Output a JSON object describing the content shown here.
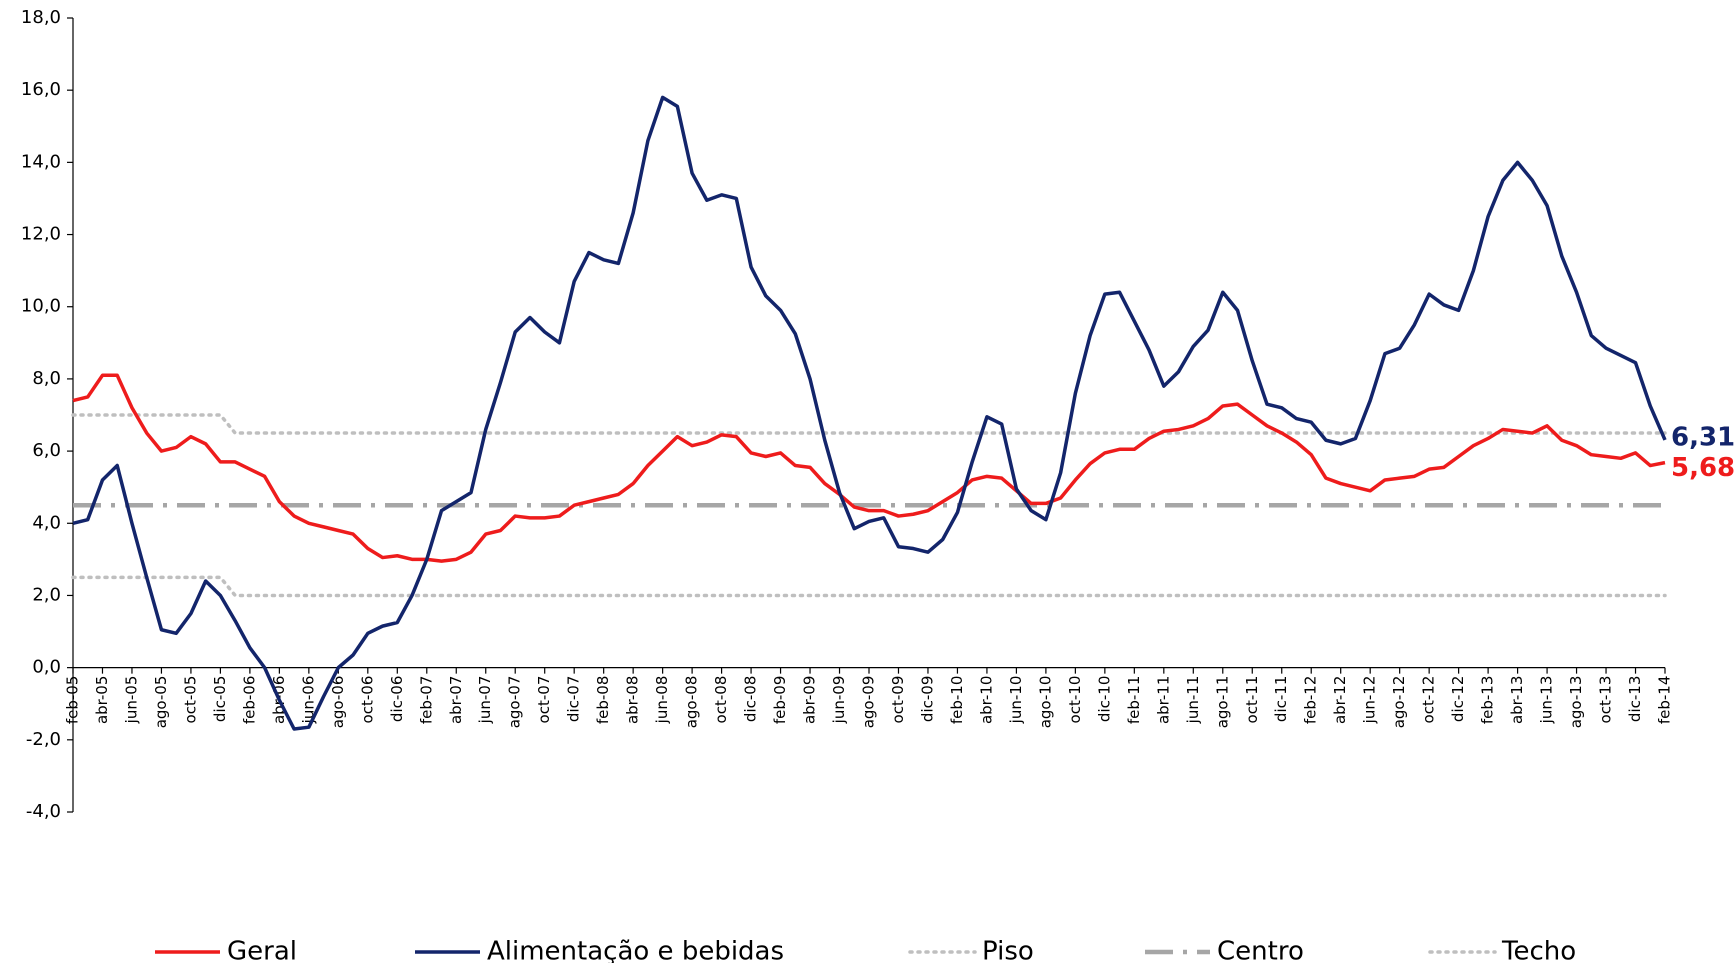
{
  "chart_data": {
    "type": "line",
    "categories": [
      "feb-05",
      null,
      "abr-05",
      null,
      "jun-05",
      null,
      "ago-05",
      null,
      "oct-05",
      null,
      "dic-05",
      null,
      "feb-06",
      null,
      "abr-06",
      null,
      "jun-06",
      null,
      "ago-06",
      null,
      "oct-06",
      null,
      "dic-06",
      null,
      "feb-07",
      null,
      "abr-07",
      null,
      "jun-07",
      null,
      "ago-07",
      null,
      "oct-07",
      null,
      "dic-07",
      null,
      "feb-08",
      null,
      "abr-08",
      null,
      "jun-08",
      null,
      "ago-08",
      null,
      "oct-08",
      null,
      "dic-08",
      null,
      "feb-09",
      null,
      "abr-09",
      null,
      "jun-09",
      null,
      "ago-09",
      null,
      "oct-09",
      null,
      "dic-09",
      null,
      "feb-10",
      null,
      "abr-10",
      null,
      "jun-10",
      null,
      "ago-10",
      null,
      "oct-10",
      null,
      "dic-10",
      null,
      "feb-11",
      null,
      "abr-11",
      null,
      "jun-11",
      null,
      "ago-11",
      null,
      "oct-11",
      null,
      "dic-11",
      null,
      "feb-12",
      null,
      "abr-12",
      null,
      "jun-12",
      null,
      "ago-12",
      null,
      "oct-12",
      null,
      "dic-12",
      null,
      "feb-13",
      null,
      "abr-13",
      null,
      "jun-13",
      null,
      "ago-13",
      null,
      "oct-13",
      null,
      "dic-13",
      null,
      "feb-14"
    ],
    "series": [
      {
        "name": "Geral",
        "color": "#ee1c1c",
        "style": "solid",
        "values": [
          7.4,
          7.5,
          8.1,
          8.1,
          7.2,
          6.5,
          6.0,
          6.1,
          6.4,
          6.2,
          5.7,
          5.7,
          5.5,
          5.3,
          4.6,
          4.2,
          4.0,
          3.9,
          3.8,
          3.7,
          3.3,
          3.05,
          3.1,
          3.0,
          3.0,
          2.95,
          3.0,
          3.2,
          3.7,
          3.8,
          4.2,
          4.15,
          4.15,
          4.2,
          4.5,
          4.6,
          4.7,
          4.8,
          5.1,
          5.6,
          6.0,
          6.4,
          6.15,
          6.25,
          6.45,
          6.4,
          5.95,
          5.85,
          5.95,
          5.6,
          5.55,
          5.1,
          4.8,
          4.45,
          4.35,
          4.35,
          4.2,
          4.25,
          4.35,
          4.6,
          4.85,
          5.2,
          5.3,
          5.25,
          4.9,
          4.55,
          4.55,
          4.7,
          5.2,
          5.65,
          5.95,
          6.05,
          6.05,
          6.35,
          6.55,
          6.6,
          6.7,
          6.9,
          7.25,
          7.3,
          7.0,
          6.7,
          6.5,
          6.25,
          5.9,
          5.25,
          5.1,
          5.0,
          4.9,
          5.2,
          5.25,
          5.3,
          5.5,
          5.55,
          5.85,
          6.15,
          6.35,
          6.6,
          6.55,
          6.5,
          6.7,
          6.3,
          6.15,
          5.9,
          5.85,
          5.8,
          5.95,
          5.6,
          5.68
        ],
        "value_labels": [
          null,
          null,
          null,
          null,
          null,
          null,
          null,
          null,
          null,
          null,
          null,
          null,
          null,
          null,
          null,
          null,
          null,
          null,
          null,
          null,
          null,
          null,
          null,
          null,
          null,
          null,
          null,
          null,
          null,
          null,
          null,
          null,
          null,
          null,
          null,
          null,
          null,
          null,
          null,
          null,
          null,
          null,
          null,
          null,
          null,
          null,
          null,
          null,
          null,
          null,
          null,
          null,
          null,
          null,
          null,
          null,
          null,
          null,
          null,
          null,
          null,
          null,
          null,
          null,
          null,
          null,
          null,
          null,
          null,
          null,
          null,
          null,
          null,
          null,
          null,
          null,
          null,
          null,
          null,
          null,
          null,
          null,
          null,
          null,
          null,
          null,
          null,
          null,
          null,
          null,
          null,
          null,
          null,
          null,
          null,
          null,
          null,
          null,
          null,
          null,
          null,
          null,
          null,
          null,
          null,
          null,
          null,
          null,
          "5,68"
        ]
      },
      {
        "name": "Alimentação e bebidas",
        "color": "#13256b",
        "style": "solid",
        "values": [
          4.0,
          4.1,
          5.2,
          5.6,
          4.0,
          2.5,
          1.05,
          0.95,
          1.5,
          2.4,
          2.0,
          1.3,
          0.55,
          0.0,
          -0.9,
          -1.7,
          -1.65,
          -0.8,
          0.0,
          0.35,
          0.95,
          1.15,
          1.25,
          2.0,
          3.0,
          4.35,
          4.6,
          4.85,
          6.6,
          7.9,
          9.3,
          9.7,
          9.3,
          9.0,
          10.7,
          11.5,
          11.3,
          11.2,
          12.6,
          14.6,
          15.8,
          15.55,
          13.7,
          12.95,
          13.1,
          13.0,
          11.1,
          10.3,
          9.9,
          9.25,
          8.0,
          6.3,
          4.85,
          3.85,
          4.05,
          4.15,
          3.35,
          3.3,
          3.2,
          3.55,
          4.3,
          5.7,
          6.95,
          6.75,
          4.95,
          4.35,
          4.1,
          5.4,
          7.6,
          9.2,
          10.35,
          10.4,
          9.6,
          8.8,
          7.8,
          8.2,
          8.9,
          9.35,
          10.4,
          9.9,
          8.5,
          7.3,
          7.2,
          6.9,
          6.8,
          6.3,
          6.2,
          6.35,
          7.4,
          8.7,
          8.85,
          9.5,
          10.35,
          10.05,
          9.9,
          11.0,
          12.5,
          13.5,
          14.0,
          13.5,
          12.8,
          11.4,
          10.4,
          9.2,
          8.85,
          8.65,
          8.45,
          7.25,
          6.31
        ],
        "value_labels": [
          null,
          null,
          null,
          null,
          null,
          null,
          null,
          null,
          null,
          null,
          null,
          null,
          null,
          null,
          null,
          null,
          null,
          null,
          null,
          null,
          null,
          null,
          null,
          null,
          null,
          null,
          null,
          null,
          null,
          null,
          null,
          null,
          null,
          null,
          null,
          null,
          null,
          null,
          null,
          null,
          null,
          null,
          null,
          null,
          null,
          null,
          null,
          null,
          null,
          null,
          null,
          null,
          null,
          null,
          null,
          null,
          null,
          null,
          null,
          null,
          null,
          null,
          null,
          null,
          null,
          null,
          null,
          null,
          null,
          null,
          null,
          null,
          null,
          null,
          null,
          null,
          null,
          null,
          null,
          null,
          null,
          null,
          null,
          null,
          null,
          null,
          null,
          null,
          null,
          null,
          null,
          null,
          null,
          null,
          null,
          null,
          null,
          null,
          null,
          null,
          null,
          null,
          null,
          null,
          null,
          null,
          null,
          null,
          "6,31"
        ]
      },
      {
        "name": "Piso",
        "color": "#bfbfbf",
        "style": "dotted",
        "values": [
          2.5,
          2.5,
          2.5,
          2.5,
          2.5,
          2.5,
          2.5,
          2.5,
          2.5,
          2.5,
          2.5,
          2.0,
          2.0,
          2.0,
          2.0,
          2.0,
          2.0,
          2.0,
          2.0,
          2.0,
          2.0,
          2.0,
          2.0,
          2.0,
          2.0,
          2.0,
          2.0,
          2.0,
          2.0,
          2.0,
          2.0,
          2.0,
          2.0,
          2.0,
          2.0,
          2.0,
          2.0,
          2.0,
          2.0,
          2.0,
          2.0,
          2.0,
          2.0,
          2.0,
          2.0,
          2.0,
          2.0,
          2.0,
          2.0,
          2.0,
          2.0,
          2.0,
          2.0,
          2.0,
          2.0,
          2.0,
          2.0,
          2.0,
          2.0,
          2.0,
          2.0,
          2.0,
          2.0,
          2.0,
          2.0,
          2.0,
          2.0,
          2.0,
          2.0,
          2.0,
          2.0,
          2.0,
          2.0,
          2.0,
          2.0,
          2.0,
          2.0,
          2.0,
          2.0,
          2.0,
          2.0,
          2.0,
          2.0,
          2.0,
          2.0,
          2.0,
          2.0,
          2.0,
          2.0,
          2.0,
          2.0,
          2.0,
          2.0,
          2.0,
          2.0,
          2.0,
          2.0,
          2.0,
          2.0,
          2.0,
          2.0,
          2.0,
          2.0,
          2.0,
          2.0,
          2.0,
          2.0,
          2.0,
          2.0
        ]
      },
      {
        "name": "Centro",
        "color": "#a6a6a6",
        "style": "dashdot",
        "values": [
          4.5,
          4.5,
          4.5,
          4.5,
          4.5,
          4.5,
          4.5,
          4.5,
          4.5,
          4.5,
          4.5,
          4.5,
          4.5,
          4.5,
          4.5,
          4.5,
          4.5,
          4.5,
          4.5,
          4.5,
          4.5,
          4.5,
          4.5,
          4.5,
          4.5,
          4.5,
          4.5,
          4.5,
          4.5,
          4.5,
          4.5,
          4.5,
          4.5,
          4.5,
          4.5,
          4.5,
          4.5,
          4.5,
          4.5,
          4.5,
          4.5,
          4.5,
          4.5,
          4.5,
          4.5,
          4.5,
          4.5,
          4.5,
          4.5,
          4.5,
          4.5,
          4.5,
          4.5,
          4.5,
          4.5,
          4.5,
          4.5,
          4.5,
          4.5,
          4.5,
          4.5,
          4.5,
          4.5,
          4.5,
          4.5,
          4.5,
          4.5,
          4.5,
          4.5,
          4.5,
          4.5,
          4.5,
          4.5,
          4.5,
          4.5,
          4.5,
          4.5,
          4.5,
          4.5,
          4.5,
          4.5,
          4.5,
          4.5,
          4.5,
          4.5,
          4.5,
          4.5,
          4.5,
          4.5,
          4.5,
          4.5,
          4.5,
          4.5,
          4.5,
          4.5,
          4.5,
          4.5,
          4.5,
          4.5,
          4.5,
          4.5,
          4.5,
          4.5,
          4.5,
          4.5,
          4.5,
          4.5,
          4.5,
          4.5
        ]
      },
      {
        "name": "Techo",
        "color": "#bfbfbf",
        "style": "dotted",
        "values": [
          7.0,
          7.0,
          7.0,
          7.0,
          7.0,
          7.0,
          7.0,
          7.0,
          7.0,
          7.0,
          7.0,
          6.5,
          6.5,
          6.5,
          6.5,
          6.5,
          6.5,
          6.5,
          6.5,
          6.5,
          6.5,
          6.5,
          6.5,
          6.5,
          6.5,
          6.5,
          6.5,
          6.5,
          6.5,
          6.5,
          6.5,
          6.5,
          6.5,
          6.5,
          6.5,
          6.5,
          6.5,
          6.5,
          6.5,
          6.5,
          6.5,
          6.5,
          6.5,
          6.5,
          6.5,
          6.5,
          6.5,
          6.5,
          6.5,
          6.5,
          6.5,
          6.5,
          6.5,
          6.5,
          6.5,
          6.5,
          6.5,
          6.5,
          6.5,
          6.5,
          6.5,
          6.5,
          6.5,
          6.5,
          6.5,
          6.5,
          6.5,
          6.5,
          6.5,
          6.5,
          6.5,
          6.5,
          6.5,
          6.5,
          6.5,
          6.5,
          6.5,
          6.5,
          6.5,
          6.5,
          6.5,
          6.5,
          6.5,
          6.5,
          6.5,
          6.5,
          6.5,
          6.5,
          6.5,
          6.5,
          6.5,
          6.5,
          6.5,
          6.5,
          6.5,
          6.5,
          6.5,
          6.5,
          6.5,
          6.5,
          6.5,
          6.5,
          6.5,
          6.5,
          6.5,
          6.5,
          6.5,
          6.5,
          6.5
        ]
      }
    ],
    "ylim": [
      -4,
      18
    ],
    "yticks": [
      {
        "value": -4,
        "label": "-4,0"
      },
      {
        "value": -2,
        "label": "-2,0"
      },
      {
        "value": 0,
        "label": "0,0"
      },
      {
        "value": 2,
        "label": "2,0"
      },
      {
        "value": 4,
        "label": "4,0"
      },
      {
        "value": 6,
        "label": "6,0"
      },
      {
        "value": 8,
        "label": "8,0"
      },
      {
        "value": 10,
        "label": "10,0"
      },
      {
        "value": 12,
        "label": "12,0"
      },
      {
        "value": 14,
        "label": "14,0"
      },
      {
        "value": 16,
        "label": "16,0"
      },
      {
        "value": 18,
        "label": "18,0"
      }
    ],
    "grid": false,
    "legend": "bottom"
  }
}
